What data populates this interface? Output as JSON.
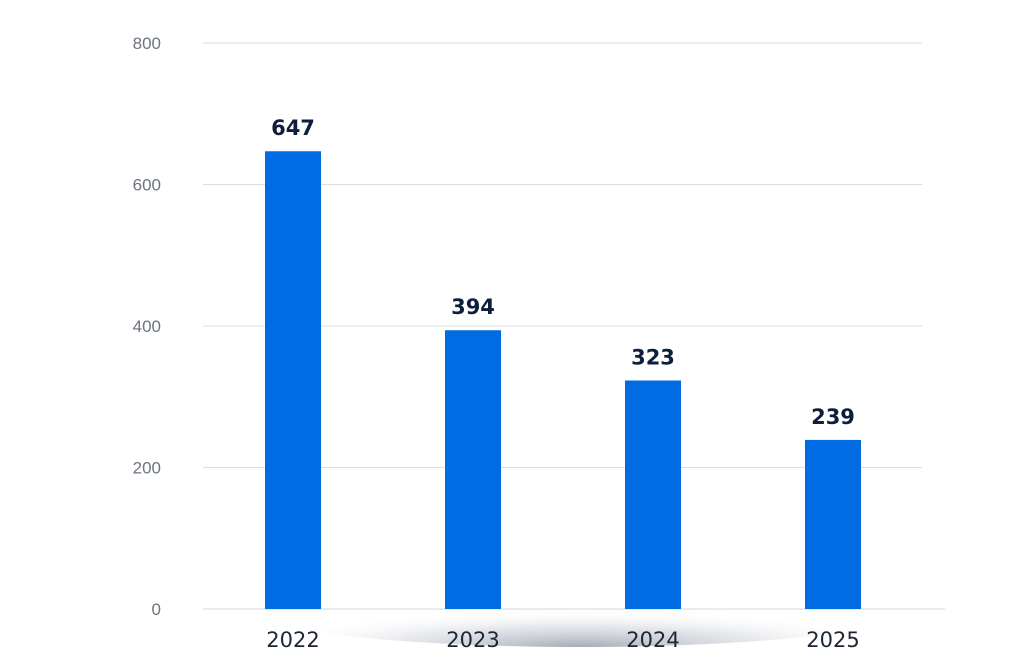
{
  "chart_data": {
    "type": "bar",
    "categories": [
      "2022",
      "2023",
      "2024",
      "2025"
    ],
    "values": [
      647,
      394,
      323,
      239
    ],
    "ylim": [
      0,
      800
    ],
    "yticks": [
      0,
      200,
      400,
      600,
      800
    ],
    "title": "",
    "xlabel": "",
    "ylabel": "",
    "grid": "horizontal",
    "data_labels": true,
    "colors": {
      "bar": "#006be3",
      "label": "#0d1f3c",
      "grid": "#d9dee6"
    }
  }
}
